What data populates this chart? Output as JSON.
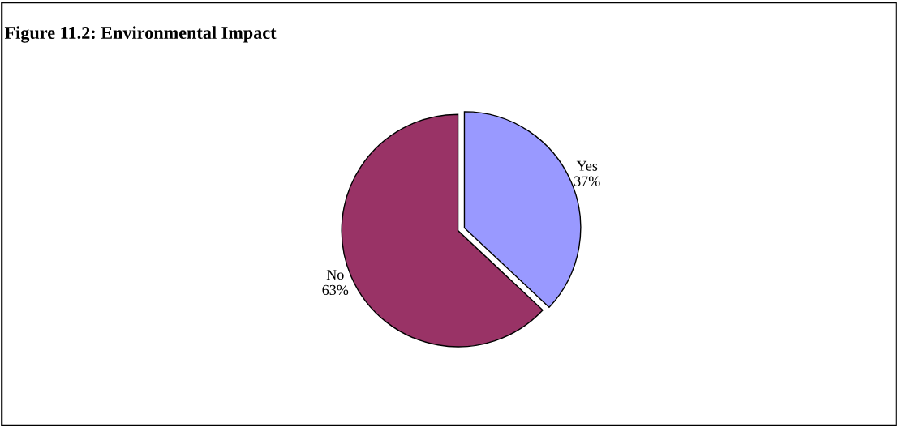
{
  "chart_data": {
    "type": "pie",
    "title": "Figure 11.2: Environmental Impact",
    "categories": [
      "Yes",
      "No"
    ],
    "values": [
      37,
      63
    ],
    "colors": [
      "#9999ff",
      "#993366"
    ],
    "value_labels": [
      "37%",
      "63%"
    ],
    "legend": false
  }
}
